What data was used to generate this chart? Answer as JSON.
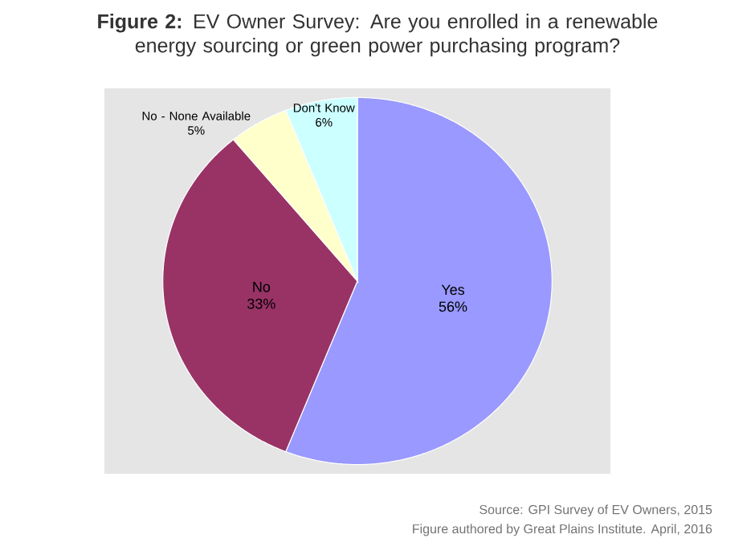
{
  "chart_data": {
    "type": "pie",
    "title": "**Figure 2:** EV Owner Survey: Are you enrolled in a renewable energy sourcing or green power purchasing program?",
    "categories": [
      "Yes",
      "No",
      "No - None Available",
      "Don't Know"
    ],
    "values": [
      56,
      33,
      5,
      6
    ],
    "value_labels": [
      "56%",
      "33%",
      "5%",
      "6%"
    ],
    "colors": [
      "#9999ff",
      "#993366",
      "#ffffcc",
      "#ccffff"
    ],
    "annotations": [
      "Source: GPI Survey of EV Owners, 2015",
      "Figure authored by Great Plains Institute. April, 2016"
    ]
  }
}
